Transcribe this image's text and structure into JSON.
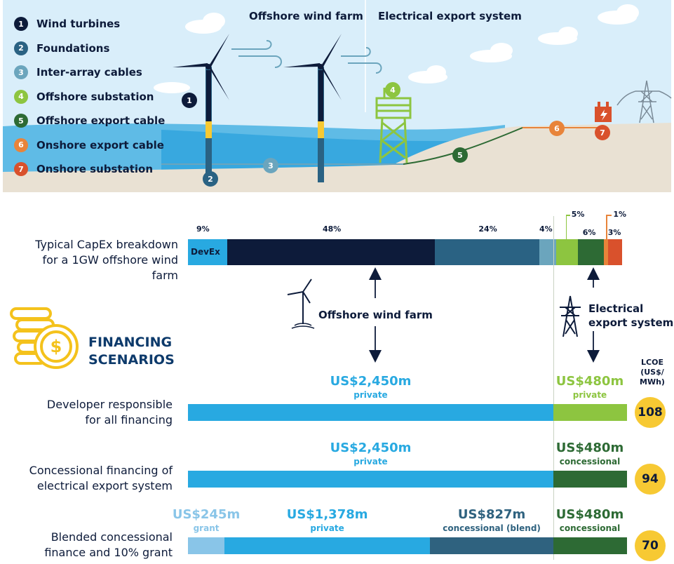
{
  "colors": {
    "navy": "#0d1b3a",
    "blue_dark": "#2a6283",
    "blue_mid": "#6ba5bd",
    "green_light": "#8dc540",
    "green_dark": "#2d6a34",
    "orange": "#e8843a",
    "red": "#d9512c",
    "cyan": "#28a9e1",
    "grant_blue": "#89c5e8",
    "blend_blue": "#2f627f",
    "yellow": "#f7c933",
    "sky": "#d9eefa",
    "sea": "#38a8df",
    "sand": "#e9e1d3"
  },
  "diagram": {
    "title_wind_farm": "Offshore wind farm",
    "title_export": "Electrical export system",
    "legend": [
      {
        "num": "1",
        "label": "Wind turbines",
        "color": "#0d1b3a"
      },
      {
        "num": "2",
        "label": "Foundations",
        "color": "#2a6283"
      },
      {
        "num": "3",
        "label": "Inter-array cables",
        "color": "#6ba5bd"
      },
      {
        "num": "4",
        "label": "Offshore substation",
        "color": "#8dc540"
      },
      {
        "num": "5",
        "label": "Offshore export cable",
        "color": "#2d6a34"
      },
      {
        "num": "6",
        "label": "Onshore export cable",
        "color": "#e8843a"
      },
      {
        "num": "7",
        "label": "Onshore substation",
        "color": "#d9512c"
      }
    ]
  },
  "capex": {
    "label_line1": "Typical CapEx breakdown",
    "label_line2": "for a 1GW offshore wind farm",
    "devex_label": "DevEx",
    "segments": [
      {
        "pct": "9%",
        "value": 9,
        "color": "#28a9e1"
      },
      {
        "pct": "48%",
        "value": 48,
        "color": "#0d1b3a"
      },
      {
        "pct": "24%",
        "value": 24,
        "color": "#2a6283"
      },
      {
        "pct": "4%",
        "value": 4,
        "color": "#6ba5bd"
      },
      {
        "pct": "5%",
        "value": 5,
        "color": "#8dc540"
      },
      {
        "pct": "6%",
        "value": 6,
        "color": "#2d6a34"
      },
      {
        "pct": "1%",
        "value": 1,
        "color": "#e8843a"
      },
      {
        "pct": "3%",
        "value": 3,
        "color": "#d9512c"
      }
    ]
  },
  "arrows": {
    "wind_farm_label": "Offshore wind farm",
    "export_label_line1": "Electrical",
    "export_label_line2": "export system"
  },
  "financing": {
    "title_line1": "FINANCING",
    "title_line2": "SCENARIOS",
    "lcoe_header": [
      "LCOE",
      "(US$/",
      "MWh)"
    ],
    "scenarios": [
      {
        "label_line1": "Developer responsible",
        "label_line2": "for all financing",
        "lcoe": "108",
        "bars": [
          {
            "amount": "US$2,450m",
            "type": "private",
            "value": 2450,
            "color": "#28a9e1",
            "text_color": "#28a9e1"
          },
          {
            "amount": "US$480m",
            "type": "private",
            "value": 480,
            "color": "#8dc540",
            "text_color": "#8dc540"
          }
        ]
      },
      {
        "label_line1": "Concessional financing of",
        "label_line2": "electrical export system",
        "lcoe": "94",
        "bars": [
          {
            "amount": "US$2,450m",
            "type": "private",
            "value": 2450,
            "color": "#28a9e1",
            "text_color": "#28a9e1"
          },
          {
            "amount": "US$480m",
            "type": "concessional",
            "value": 480,
            "color": "#2d6a34",
            "text_color": "#2d6a34"
          }
        ]
      },
      {
        "label_line1": "Blended concessional",
        "label_line2": "finance and 10% grant",
        "lcoe": "70",
        "bars": [
          {
            "amount": "US$245m",
            "type": "grant",
            "value": 245,
            "color": "#89c5e8",
            "text_color": "#89c5e8"
          },
          {
            "amount": "US$1,378m",
            "type": "private",
            "value": 1378,
            "color": "#28a9e1",
            "text_color": "#28a9e1"
          },
          {
            "amount": "US$827m",
            "type": "concessional (blend)",
            "value": 827,
            "color": "#2f627f",
            "text_color": "#2f627f"
          },
          {
            "amount": "US$480m",
            "type": "concessional",
            "value": 480,
            "color": "#2d6a34",
            "text_color": "#2d6a34"
          }
        ]
      }
    ]
  }
}
